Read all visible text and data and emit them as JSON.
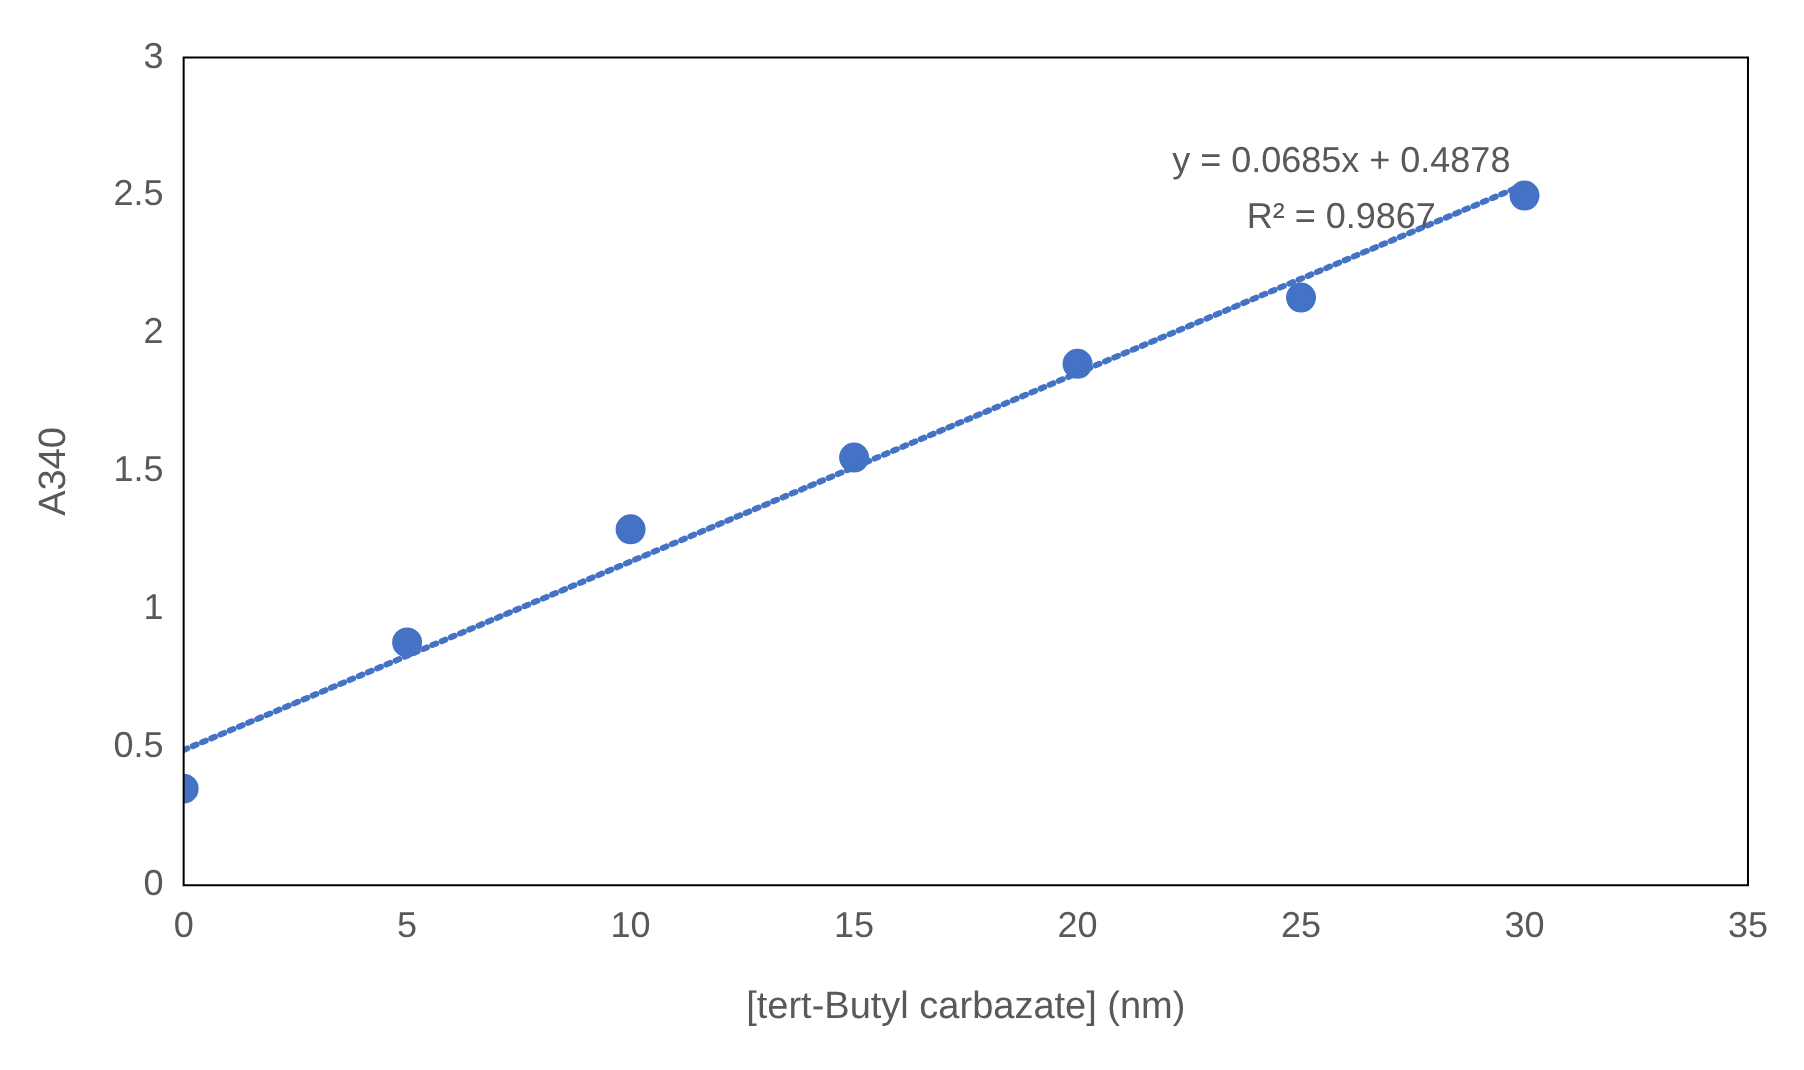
{
  "chart_data": {
    "type": "scatter",
    "xlabel": "[tert-Butyl carbazate] (nm)",
    "ylabel": "A340",
    "xlim": [
      0,
      35
    ],
    "xticks": [
      0,
      5,
      10,
      15,
      20,
      25,
      30,
      35
    ],
    "ylim": [
      0,
      3
    ],
    "yticks": [
      0,
      0.5,
      1,
      1.5,
      2,
      2.5,
      3
    ],
    "grid": false,
    "legend": false,
    "marker": "circle",
    "series": [
      {
        "type": "scatter",
        "color": "#4472c4",
        "x": [
          0,
          5,
          10,
          15,
          20,
          25,
          30
        ],
        "values": [
          0.35,
          0.88,
          1.29,
          1.55,
          1.89,
          2.13,
          2.5
        ]
      },
      {
        "type": "line",
        "color": "#4472c4",
        "line_style": "dotted",
        "marker": "none",
        "x": [
          0,
          30
        ],
        "values": [
          0.49,
          2.54
        ]
      }
    ],
    "annotations": [
      "y = 0.0685x + 0.4878",
      "R² = 0.9867"
    ]
  }
}
